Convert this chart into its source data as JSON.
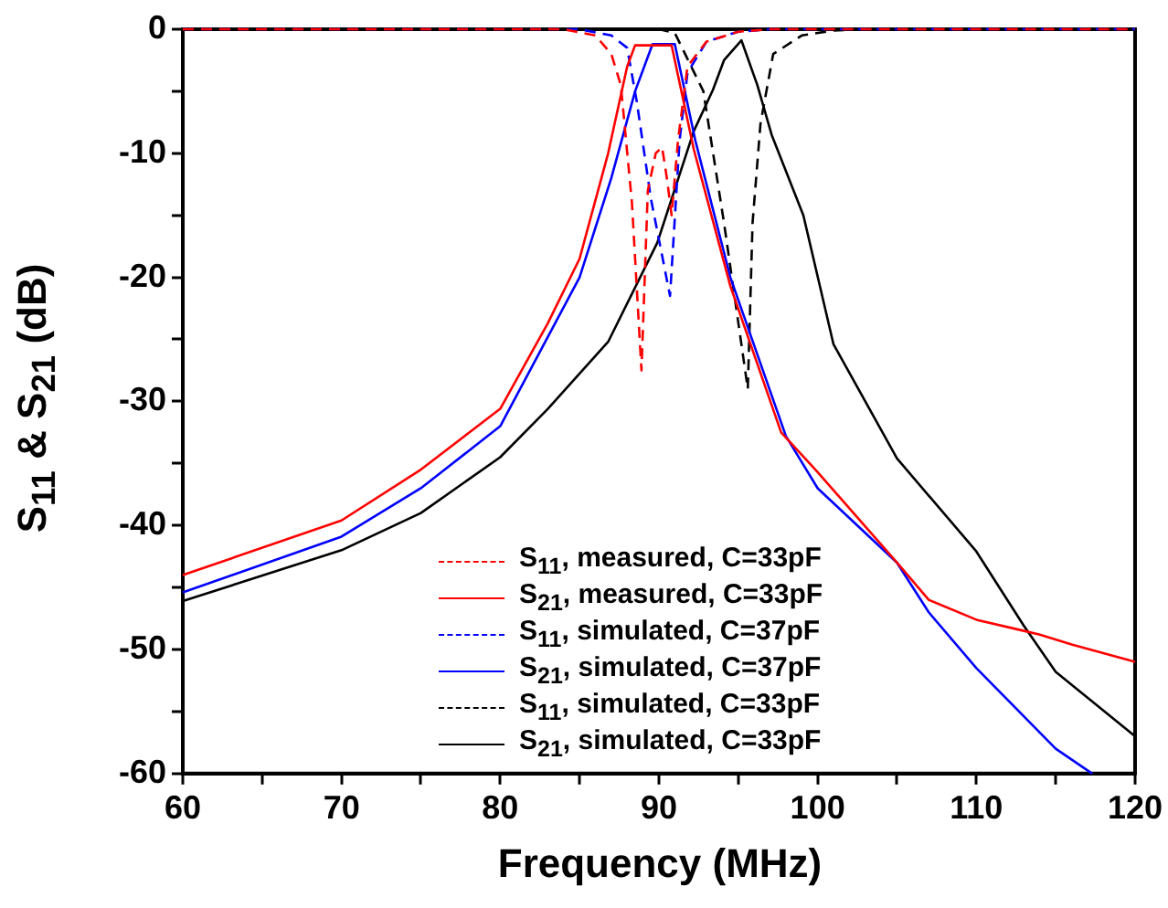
{
  "chart_data": {
    "type": "line",
    "xlabel": "Frequency (MHz)",
    "ylabel": "S$_{11}$ & S$_{21}$ (dB)",
    "xlim": [
      60,
      120
    ],
    "ylim": [
      -60,
      0
    ],
    "xticks": [
      60,
      {
        "value": 65,
        "label": null
      },
      70,
      {
        "value": 75,
        "label": null
      },
      80,
      {
        "value": 85,
        "label": null
      },
      90,
      {
        "value": 95,
        "label": null
      },
      100,
      {
        "value": 105,
        "label": null
      },
      110,
      {
        "value": 115,
        "label": null
      },
      120
    ],
    "yticks": [
      -60,
      {
        "value": -55,
        "label": null
      },
      -50,
      {
        "value": -45,
        "label": null
      },
      -40,
      {
        "value": -35,
        "label": null
      },
      -30,
      {
        "value": -25,
        "label": null
      },
      -20,
      {
        "value": -15,
        "label": null
      },
      -10,
      {
        "value": -5,
        "label": null
      },
      0
    ],
    "grid": false,
    "legend": "bottom left",
    "marker": "none",
    "series": [
      {
        "name": "S$_{11}$, measured, C=33pF",
        "color": "#ff0000",
        "line_style": "dashed",
        "x": [
          60,
          84,
          86,
          87,
          87.6,
          88.3,
          88.9,
          89.3,
          89.8,
          90.2,
          90.5,
          90.8,
          91.2,
          91.8,
          93,
          95,
          97,
          120
        ],
        "values": [
          0,
          0,
          -0.5,
          -2,
          -4.5,
          -14,
          -27.5,
          -13,
          -10,
          -9.5,
          -12,
          -15,
          -9,
          -3,
          -1,
          -0.2,
          0,
          0
        ]
      },
      {
        "name": "S$_{21}$, measured, C=33pF",
        "color": "#ff0000",
        "line_style": "solid",
        "x": [
          60,
          70,
          75,
          80,
          83,
          85,
          86.8,
          88,
          88.5,
          90.8,
          92.2,
          94.5,
          97.7,
          100,
          105,
          107,
          110,
          113,
          114,
          116,
          118,
          120
        ],
        "values": [
          -44,
          -39.6,
          -35.5,
          -30.6,
          -23.7,
          -18.5,
          -10,
          -3,
          -1.3,
          -1.3,
          -9.7,
          -20.7,
          -32.5,
          -35.7,
          -43,
          -46,
          -47.6,
          -48.5,
          -48.8,
          -49.6,
          -50.3,
          -51
        ]
      },
      {
        "name": "S$_{11}$, simulated, C=37pF",
        "color": "#0000ff",
        "line_style": "dashed",
        "x": [
          60,
          85,
          87,
          88,
          88.6,
          89.5,
          90.7,
          91.3,
          91.8,
          93,
          95,
          97,
          120
        ],
        "values": [
          0,
          0,
          -0.5,
          -1.5,
          -5.8,
          -13.7,
          -21.5,
          -9,
          -3.5,
          -1,
          -0.2,
          0,
          0
        ]
      },
      {
        "name": "S$_{21}$, simulated, C=37pF",
        "color": "#0000ff",
        "line_style": "solid",
        "x": [
          60,
          70,
          75,
          80,
          85,
          87,
          88.5,
          89.6,
          91,
          92.3,
          94.5,
          98,
          100,
          105,
          107,
          110,
          115,
          117.3
        ],
        "values": [
          -45.4,
          -40.9,
          -37,
          -32,
          -20,
          -12,
          -5,
          -1.2,
          -1.2,
          -9,
          -20,
          -32.8,
          -37,
          -43,
          -47,
          -51.5,
          -58,
          -60
        ]
      },
      {
        "name": "S$_{11}$, simulated, C=33pF",
        "color": "#000000",
        "line_style": "dashed",
        "x": [
          60,
          90,
          91,
          92.8,
          94.1,
          95.6,
          95.9,
          96.4,
          97.2,
          99,
          101,
          103,
          120
        ],
        "values": [
          0,
          0,
          -0.3,
          -5,
          -15.6,
          -29,
          -15.6,
          -7.6,
          -2,
          -0.5,
          -0.1,
          0,
          0
        ]
      },
      {
        "name": "S$_{21}$, simulated, C=33pF",
        "color": "#000000",
        "line_style": "solid",
        "x": [
          60,
          70,
          75,
          80,
          83,
          86.8,
          89.9,
          92.2,
          93.4,
          94.1,
          95.2,
          96.2,
          97.1,
          99.1,
          101,
          105,
          110,
          113,
          115,
          120
        ],
        "values": [
          -46.1,
          -42,
          -39,
          -34.5,
          -30.6,
          -25.2,
          -17.2,
          -8.2,
          -4.9,
          -2.5,
          -0.9,
          -4.5,
          -8.5,
          -15,
          -25.4,
          -34.6,
          -42.1,
          -48.1,
          -51.8,
          -57
        ]
      }
    ]
  }
}
